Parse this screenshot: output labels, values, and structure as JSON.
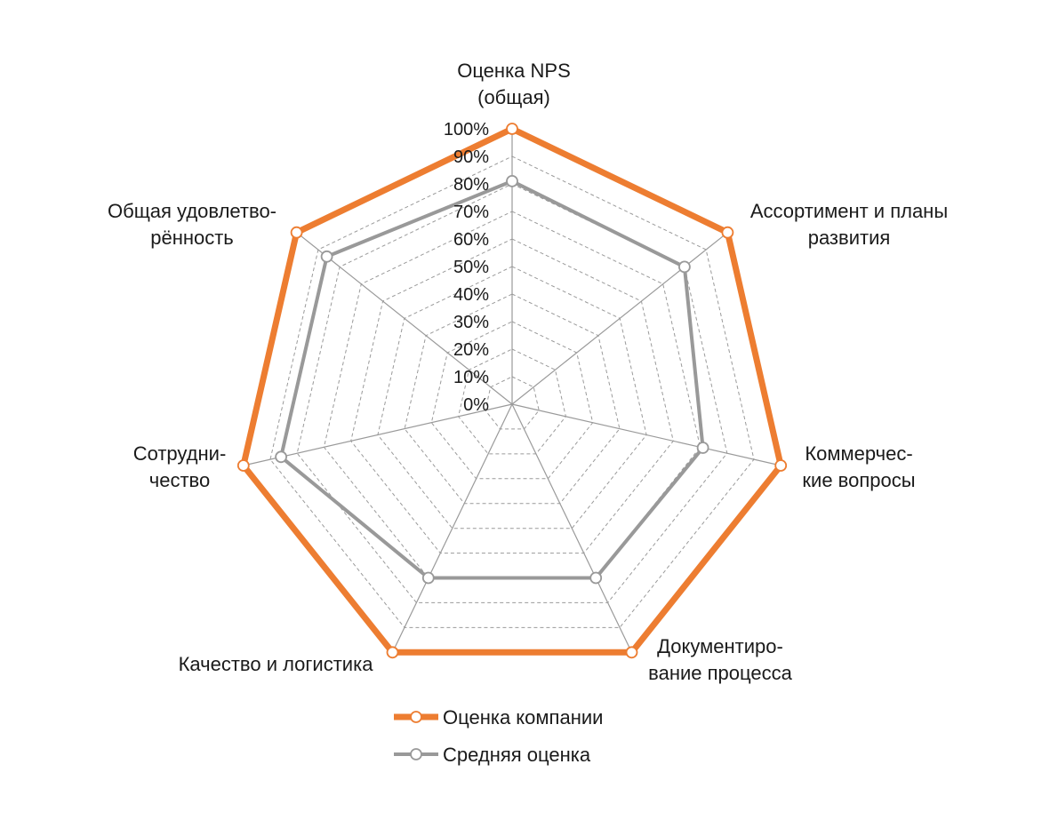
{
  "chart_data": {
    "type": "radar",
    "title": "",
    "categories": [
      [
        "Оценка NPS",
        "(общая)"
      ],
      [
        "Ассортимент и планы",
        "развития"
      ],
      [
        "Коммерчес-",
        "кие вопросы"
      ],
      [
        "Документиро-",
        "вание процесса"
      ],
      [
        "Качество и логистика"
      ],
      [
        "Сотрудни-",
        "чество"
      ],
      [
        "Общая удовлетво-",
        "рённость"
      ]
    ],
    "radial_ticks": [
      "0%",
      "10%",
      "20%",
      "30%",
      "40%",
      "50%",
      "60%",
      "70%",
      "80%",
      "90%",
      "100%"
    ],
    "r_range": [
      0,
      100
    ],
    "legend_position": "bottom",
    "series": [
      {
        "name": "Оценка компании",
        "color": "#ED7D31",
        "values": [
          100,
          100,
          100,
          100,
          100,
          100,
          100
        ]
      },
      {
        "name": "Средняя оценка",
        "color": "#999999",
        "values": [
          81,
          80,
          71,
          70,
          70,
          86,
          86
        ]
      }
    ]
  }
}
